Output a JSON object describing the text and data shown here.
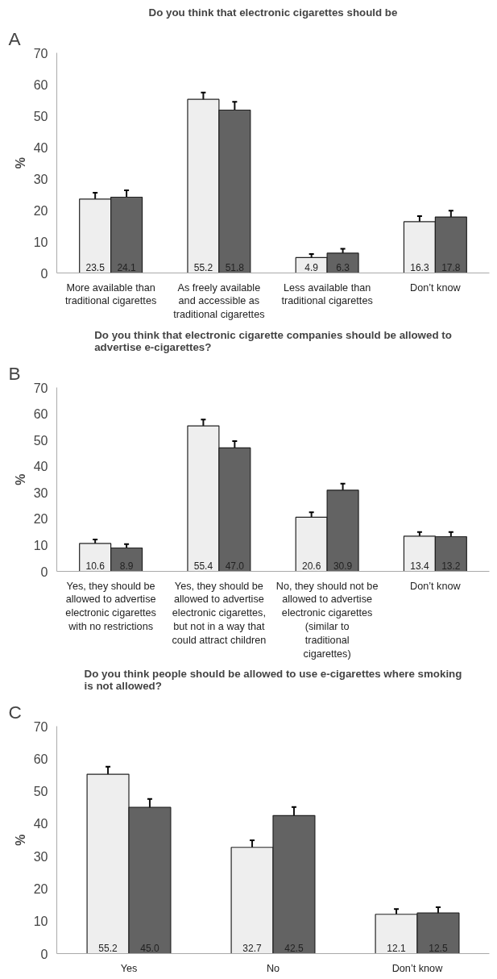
{
  "chart_data": [
    {
      "type": "bar",
      "annotations": [
        "A"
      ],
      "title": "Do you think that electronic cigarettes should be",
      "ylabel": "%",
      "categories": [
        "More available than traditional cigarettes",
        "As freely available and accessible as traditional cigarettes",
        "Less available than traditional cigarettes",
        "Don’t know"
      ],
      "series": [
        {
          "color": "#eeeeee",
          "values": [
            23.5,
            55.2,
            4.9,
            16.3
          ],
          "errors": [
            2.0,
            2.2,
            1.1,
            1.8
          ],
          "value_labels": [
            "23.5",
            "55.2",
            "4.9",
            "16.3"
          ]
        },
        {
          "color": "#636363",
          "values": [
            24.1,
            51.8,
            6.3,
            17.8
          ],
          "errors": [
            2.2,
            2.6,
            1.4,
            2.0
          ],
          "value_labels": [
            "24.1",
            "51.8",
            "6.3",
            "17.8"
          ]
        }
      ],
      "ylim": [
        0,
        70
      ],
      "yticks": [
        0,
        10,
        20,
        30,
        40,
        50,
        60,
        70
      ],
      "grid": false
    },
    {
      "type": "bar",
      "annotations": [
        "B"
      ],
      "title": "Do you think that electronic cigarette companies should be allowed to advertise e-cigarettes?",
      "ylabel": "%",
      "categories": [
        "Yes, they should be allowed to advertise electronic cigarettes with no restrictions",
        "Yes, they should be allowed to advertise electronic cigarettes, but not in a way that could attract children",
        "No, they should not be allowed to advertise electronic cigarettes (similar to traditional cigarettes)",
        "Don’t know"
      ],
      "series": [
        {
          "color": "#eeeeee",
          "values": [
            10.6,
            55.4,
            20.6,
            13.4
          ],
          "errors": [
            1.5,
            2.4,
            1.9,
            1.6
          ],
          "value_labels": [
            "10.6",
            "55.4",
            "20.6",
            "13.4"
          ]
        },
        {
          "color": "#636363",
          "values": [
            8.9,
            47.0,
            30.9,
            13.2
          ],
          "errors": [
            1.5,
            2.6,
            2.5,
            1.8
          ],
          "value_labels": [
            "8.9",
            "47.0",
            "30.9",
            "13.2"
          ]
        }
      ],
      "ylim": [
        0,
        70
      ],
      "yticks": [
        0,
        10,
        20,
        30,
        40,
        50,
        60,
        70
      ],
      "grid": false
    },
    {
      "type": "bar",
      "annotations": [
        "C"
      ],
      "title": "Do you think people should be allowed to use e-cigarettes where smoking is not allowed?",
      "ylabel": "%",
      "categories": [
        "Yes",
        "No",
        "Don’t know"
      ],
      "series": [
        {
          "color": "#eeeeee",
          "values": [
            55.2,
            32.7,
            12.1
          ],
          "errors": [
            2.3,
            2.2,
            1.6
          ],
          "value_labels": [
            "55.2",
            "32.7",
            "12.1"
          ]
        },
        {
          "color": "#636363",
          "values": [
            45.0,
            42.5,
            12.5
          ],
          "errors": [
            2.6,
            2.6,
            1.8
          ],
          "value_labels": [
            "45.0",
            "42.5",
            "12.5"
          ]
        }
      ],
      "ylim": [
        0,
        70
      ],
      "yticks": [
        0,
        10,
        20,
        30,
        40,
        50,
        60,
        70
      ],
      "grid": false
    }
  ]
}
